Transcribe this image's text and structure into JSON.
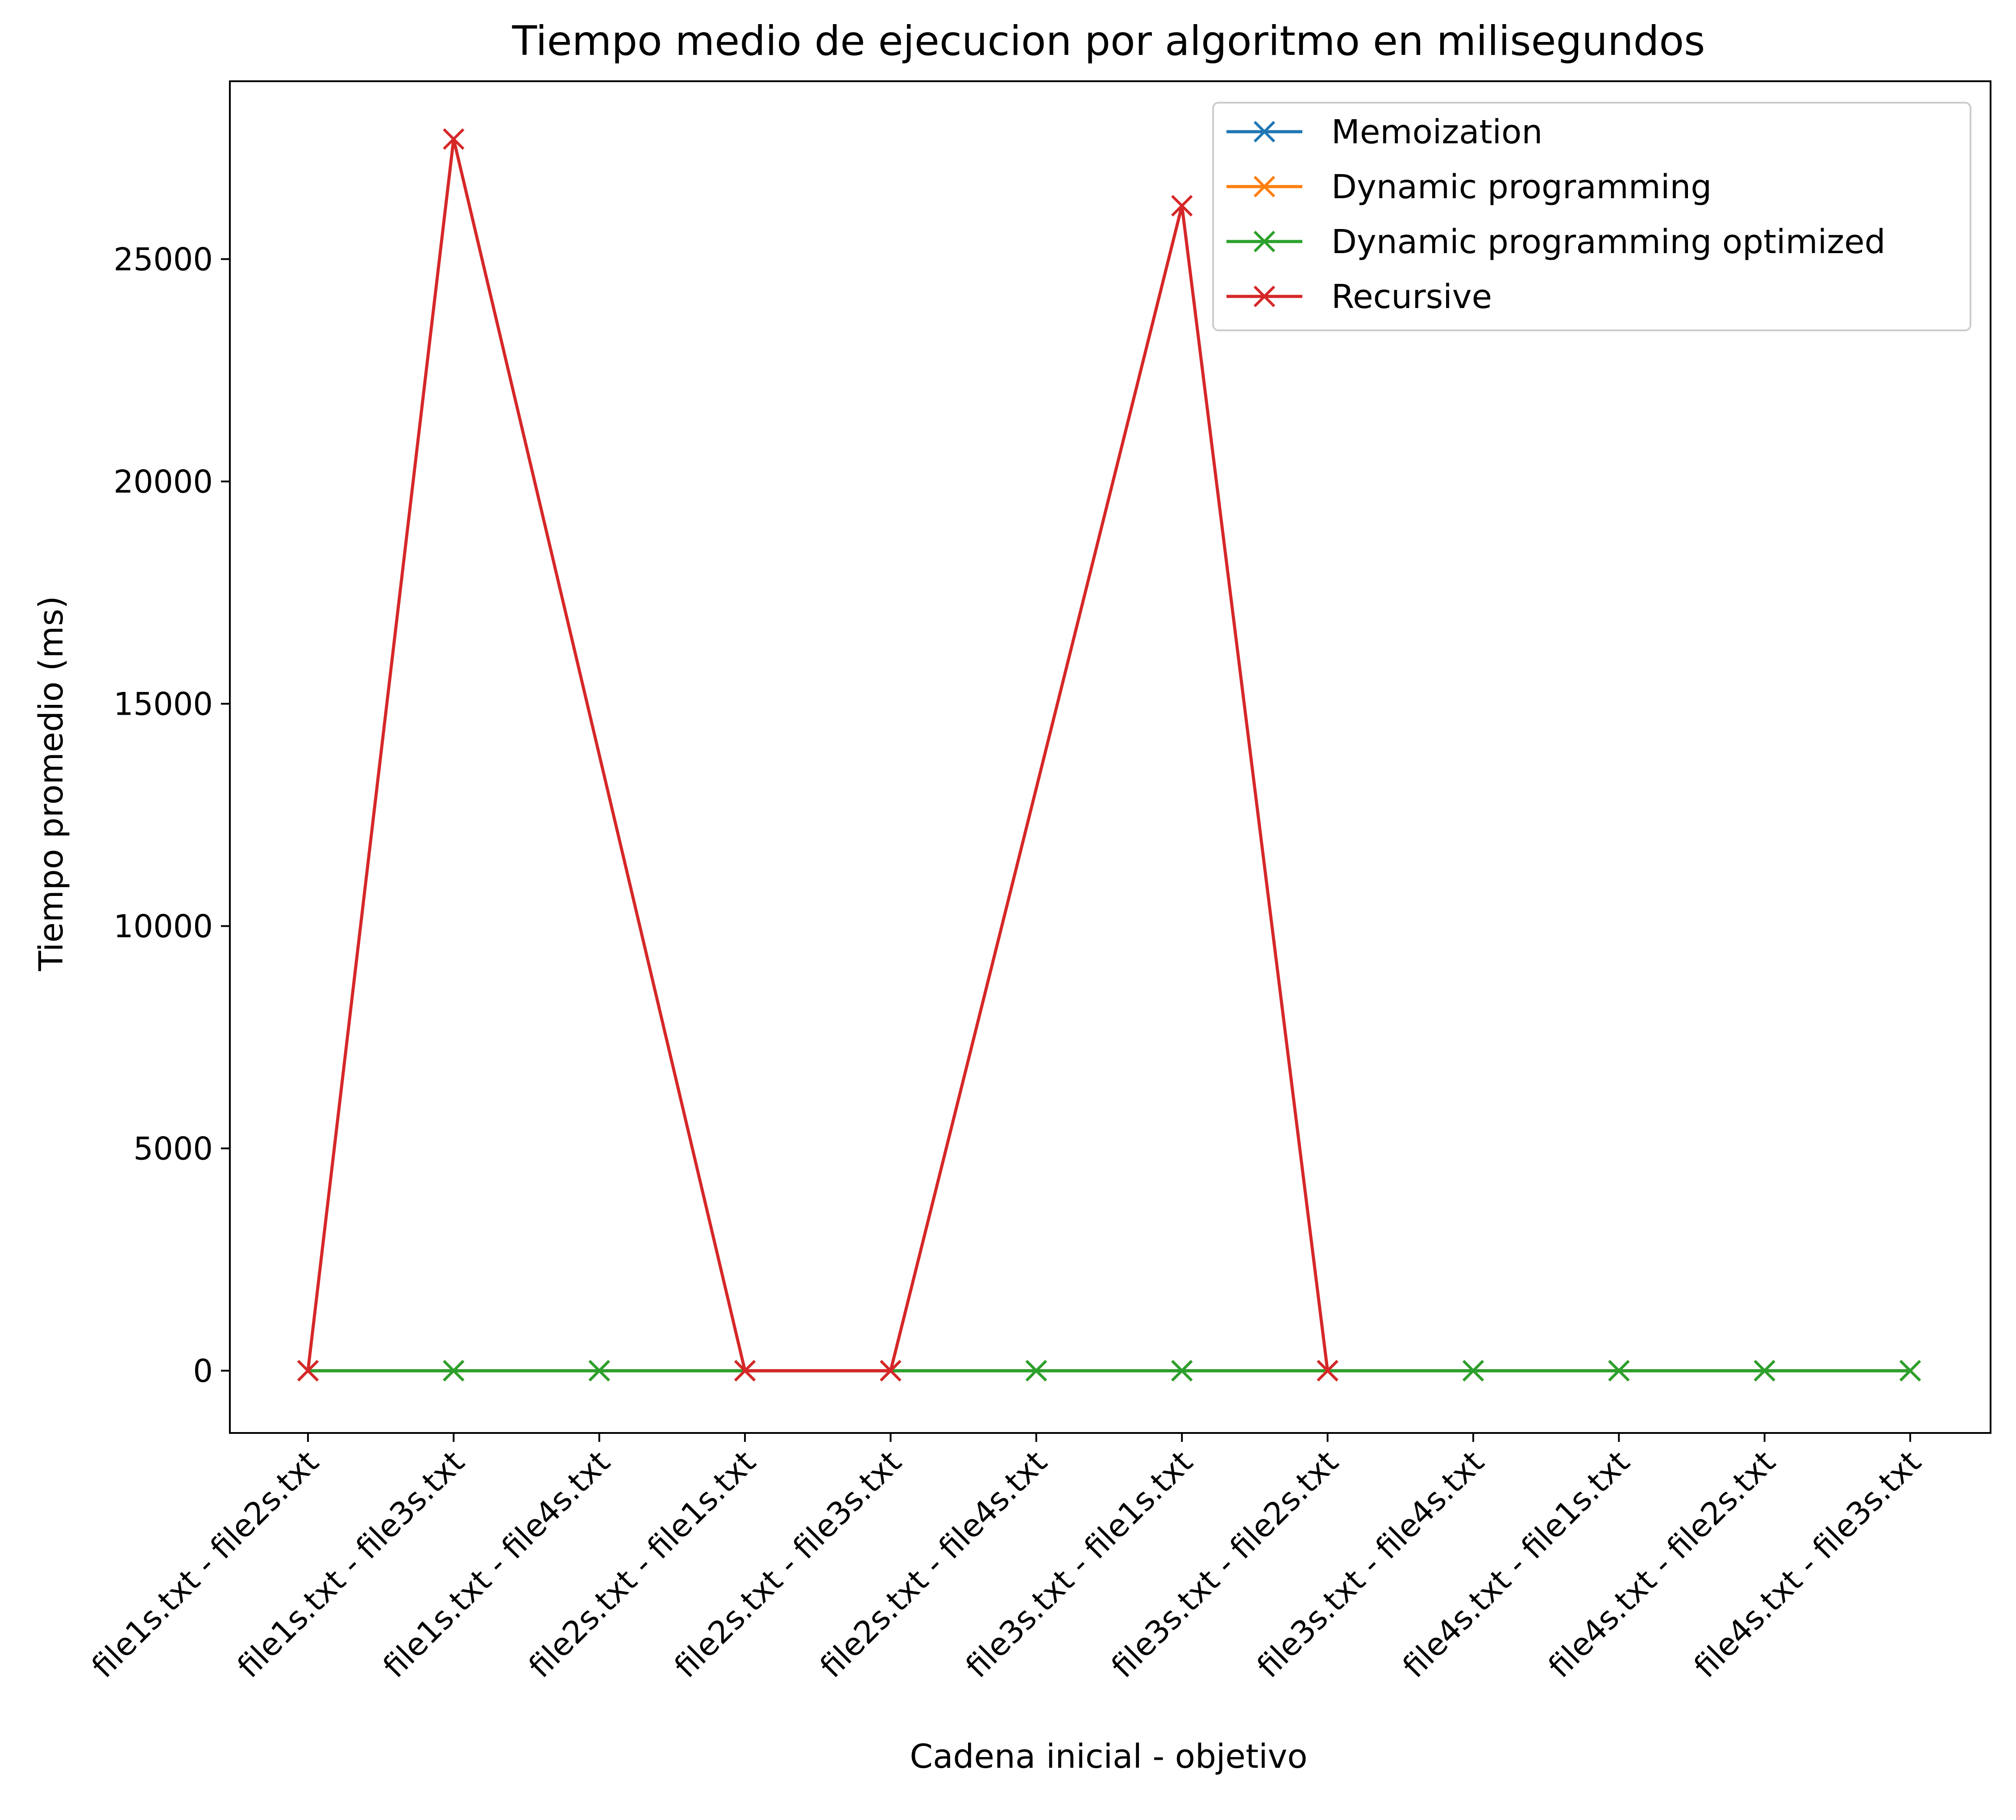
{
  "chart_data": {
    "type": "line",
    "title": "Tiempo medio de ejecucion por algoritmo en milisegundos",
    "xlabel": "Cadena inicial - objetivo",
    "ylabel": "Tiempo promedio (ms)",
    "categories": [
      "file1s.txt - file2s.txt",
      "file1s.txt - file3s.txt",
      "file1s.txt - file4s.txt",
      "file2s.txt - file1s.txt",
      "file2s.txt - file3s.txt",
      "file2s.txt - file4s.txt",
      "file3s.txt - file1s.txt",
      "file3s.txt - file2s.txt",
      "file3s.txt - file4s.txt",
      "file4s.txt - file1s.txt",
      "file4s.txt - file2s.txt",
      "file4s.txt - file3s.txt"
    ],
    "yticks": [
      "0",
      "5000",
      "10000",
      "15000",
      "20000",
      "25000"
    ],
    "ylim": [
      -1400,
      29000
    ],
    "grid": false,
    "legend_position": "top-right",
    "marker": "x",
    "series": [
      {
        "name": "Memoization",
        "color": "#1f77b4",
        "values": [
          0,
          0,
          0,
          0,
          0,
          0,
          0,
          0,
          0,
          0,
          0,
          0
        ]
      },
      {
        "name": "Dynamic programming",
        "color": "#ff7f0e",
        "values": [
          0,
          0,
          0,
          0,
          0,
          0,
          0,
          0,
          0,
          0,
          0,
          0
        ]
      },
      {
        "name": "Dynamic programming optimized",
        "color": "#2ca02c",
        "values": [
          0,
          0,
          0,
          0,
          0,
          0,
          0,
          0,
          0,
          0,
          0,
          0
        ]
      },
      {
        "name": "Recursive",
        "color": "#d62728",
        "values": [
          0,
          27700,
          null,
          0,
          0,
          null,
          26200,
          0,
          null,
          null,
          null,
          null
        ]
      }
    ]
  }
}
